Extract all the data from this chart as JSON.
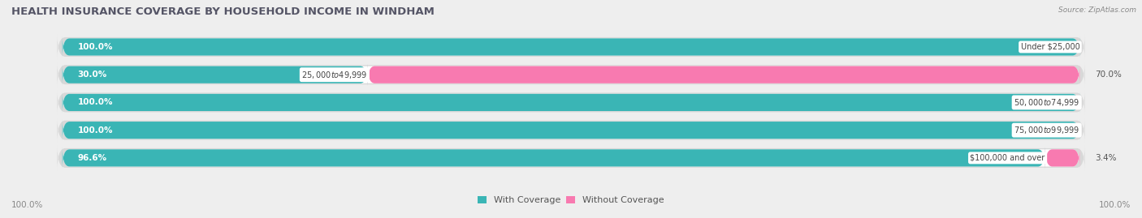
{
  "title": "HEALTH INSURANCE COVERAGE BY HOUSEHOLD INCOME IN WINDHAM",
  "source": "Source: ZipAtlas.com",
  "categories": [
    "Under $25,000",
    "$25,000 to $49,999",
    "$50,000 to $74,999",
    "$75,000 to $99,999",
    "$100,000 and over"
  ],
  "with_coverage": [
    100.0,
    30.0,
    100.0,
    100.0,
    96.6
  ],
  "without_coverage": [
    0.0,
    70.0,
    0.0,
    0.0,
    3.4
  ],
  "color_with": "#3ab5b5",
  "color_without": "#f87ab0",
  "bg_color": "#eeeeee",
  "bar_bg_color": "#ffffff",
  "bar_bg_shadow": "#d8d8d8",
  "title_fontsize": 9.5,
  "label_fontsize": 7.5,
  "tick_fontsize": 7.5,
  "legend_fontsize": 8,
  "bar_height": 0.62,
  "xlim": [
    -5,
    105
  ],
  "note_0pct_extra": 8
}
